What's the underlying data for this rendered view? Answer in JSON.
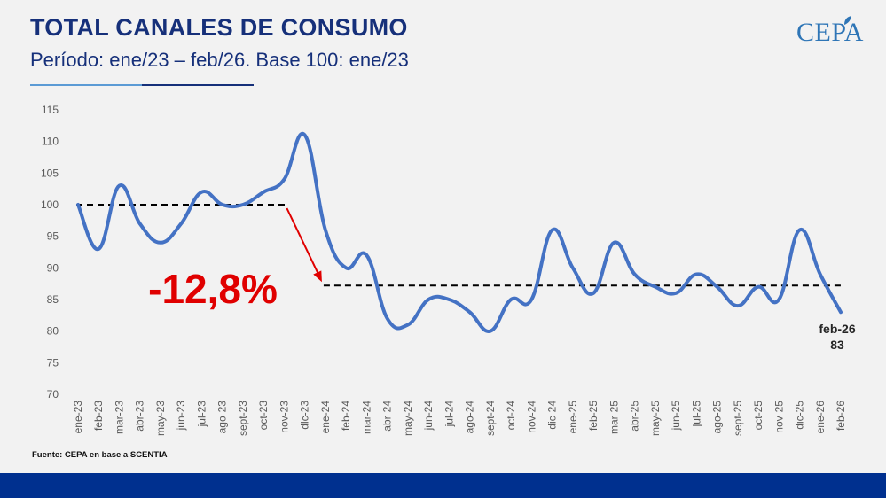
{
  "header": {
    "title": "TOTAL CANALES DE CONSUMO",
    "subtitle": "Período: ene/23 – feb/26. Base 100: ene/23",
    "logo": "CEPA"
  },
  "source": "Fuente: CEPA en base a SCENTIA",
  "colors": {
    "line": "#4472c4",
    "title": "#16307a",
    "highlight": "#e00000",
    "footer": "#00308f"
  },
  "chart_data": {
    "type": "line",
    "x": [
      "ene-23",
      "feb-23",
      "mar-23",
      "abr-23",
      "may-23",
      "jun-23",
      "jul-23",
      "ago-23",
      "sept-23",
      "oct-23",
      "nov-23",
      "dic-23",
      "ene-24",
      "feb-24",
      "mar-24",
      "abr-24",
      "may-24",
      "jun-24",
      "jul-24",
      "ago-24",
      "sept-24",
      "oct-24",
      "nov-24",
      "dic-24",
      "ene-25",
      "feb-25",
      "mar-25",
      "abr-25",
      "may-25",
      "jun-25",
      "jul-25",
      "ago-25",
      "sept-25",
      "oct-25",
      "nov-25",
      "dic-25",
      "ene-26",
      "feb-26"
    ],
    "series": [
      {
        "values": [
          100,
          93,
          103,
          97,
          94,
          97,
          102,
          100,
          100,
          102,
          104,
          111,
          96,
          90,
          92,
          82,
          81,
          85,
          85,
          83,
          80,
          85,
          85,
          96,
          90,
          86,
          94,
          89,
          87,
          86,
          89,
          87,
          84,
          87,
          85,
          96,
          89,
          83
        ]
      }
    ],
    "ylim": [
      70,
      115
    ],
    "yticks": [
      70,
      75,
      80,
      85,
      90,
      95,
      100,
      105,
      110,
      115
    ],
    "reference_lines": [
      {
        "value": 100,
        "from": "ene-23",
        "to": "nov-23"
      },
      {
        "value": 87.2,
        "from": "ene-24",
        "to": "feb-26"
      }
    ],
    "annotations": {
      "change_label": "-12,8%",
      "arrow": {
        "from": "nov-23",
        "to": "ene-24"
      },
      "last_point_label": "feb-26",
      "last_point_value": "83"
    },
    "grid": false,
    "legend": "none"
  }
}
